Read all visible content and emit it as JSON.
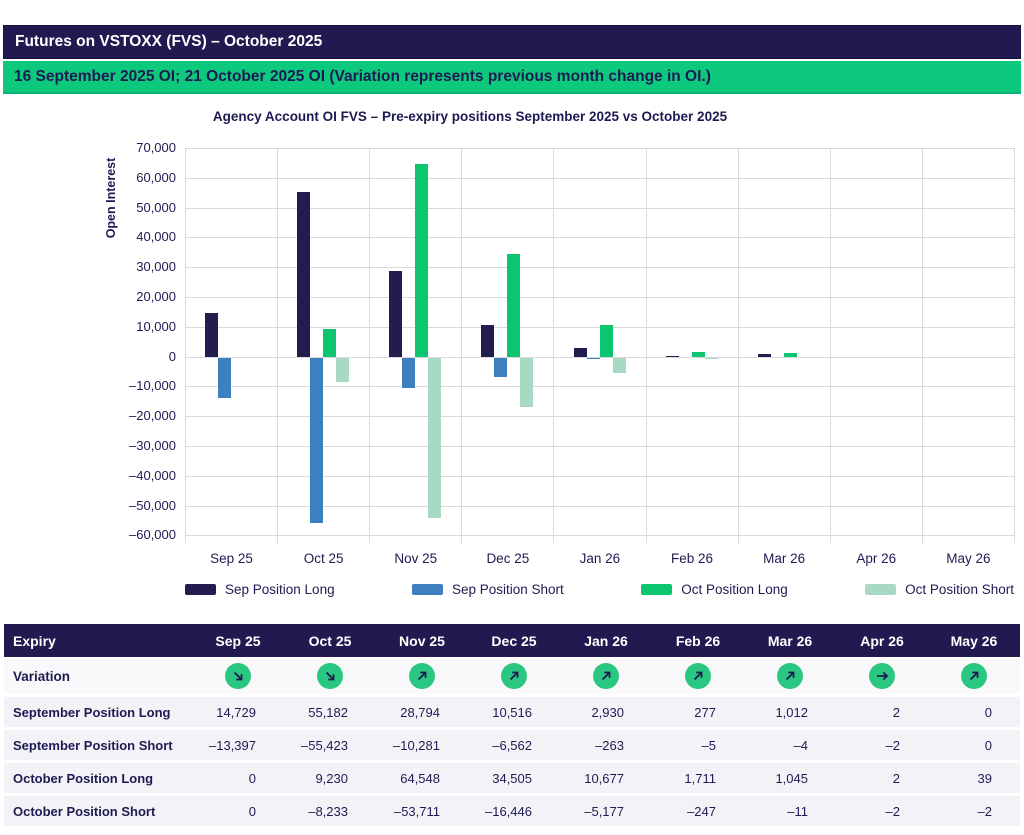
{
  "header": {
    "title": "Futures on VSTOXX (FVS) – October 2025",
    "subtitle": "16 September 2025 OI; 21 October 2025 OI (Variation represents previous month change in OI.)"
  },
  "colors": {
    "navy": "#231d4f",
    "blue": "#3e7fc0",
    "green": "#0cc56e",
    "mint": "#a8d9c3",
    "banner_green": "#0dc97e",
    "circle_green": "#29c77f",
    "grid": "#d9d9d9",
    "text_navy": "#1e1b52"
  },
  "chart_data": {
    "type": "bar",
    "title": "Agency Account OI FVS – Pre-expiry positions September 2025 vs October 2025",
    "ylabel": "Open Interest",
    "xlabel": "",
    "categories": [
      "Sep 25",
      "Oct 25",
      "Nov 25",
      "Dec 25",
      "Jan 26",
      "Feb 26",
      "Mar 26",
      "Apr 26",
      "May 26"
    ],
    "series": [
      {
        "name": "Sep Position Long",
        "color": "#231d4f",
        "values": [
          14729,
          55182,
          28794,
          10516,
          2930,
          277,
          1012,
          2,
          0
        ]
      },
      {
        "name": "Sep Position Short",
        "color": "#3e7fc0",
        "values": [
          -13397,
          -55423,
          -10281,
          -6562,
          -263,
          -5,
          -4,
          -2,
          0
        ]
      },
      {
        "name": "Oct Position Long",
        "color": "#0cc56e",
        "values": [
          0,
          9230,
          64548,
          34505,
          10677,
          1711,
          1045,
          2,
          39
        ]
      },
      {
        "name": "Oct Position Short",
        "color": "#a8d9c3",
        "values": [
          0,
          -8233,
          -53711,
          -16446,
          -5177,
          -247,
          -11,
          -2,
          -2
        ]
      }
    ],
    "ylim": [
      -60000,
      70000
    ],
    "ytick_step": 10000,
    "grid": true,
    "legend_position": "bottom"
  },
  "table": {
    "header": [
      "Expiry",
      "Sep 25",
      "Oct 25",
      "Nov 25",
      "Dec 25",
      "Jan 26",
      "Feb 26",
      "Mar 26",
      "Apr 26",
      "May 26"
    ],
    "variation_label": "Variation",
    "variation": [
      "down-right",
      "down-right",
      "up-right",
      "up-right",
      "up-right",
      "up-right",
      "up-right",
      "right",
      "up-right"
    ],
    "rows": [
      {
        "label": "September Position Long",
        "values": [
          "14,729",
          "55,182",
          "28,794",
          "10,516",
          "2,930",
          "277",
          "1,012",
          "2",
          "0"
        ]
      },
      {
        "label": "September Position Short",
        "values": [
          "–13,397",
          "–55,423",
          "–10,281",
          "–6,562",
          "–263",
          "–5",
          "–4",
          "–2",
          "0"
        ]
      },
      {
        "label": "October Position Long",
        "values": [
          "0",
          "9,230",
          "64,548",
          "34,505",
          "10,677",
          "1,711",
          "1,045",
          "2",
          "39"
        ]
      },
      {
        "label": "October Position Short",
        "values": [
          "0",
          "–8,233",
          "–53,711",
          "–16,446",
          "–5,177",
          "–247",
          "–11",
          "–2",
          "–2"
        ]
      }
    ]
  }
}
